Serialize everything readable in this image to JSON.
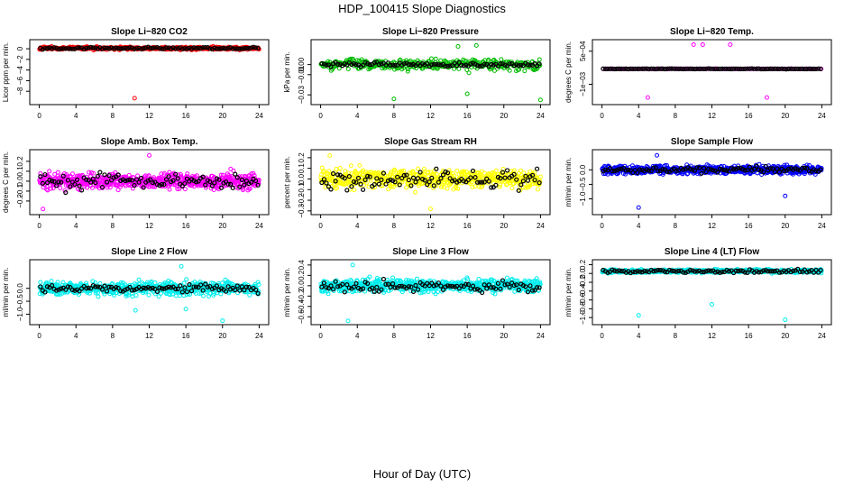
{
  "title": "HDP_100415  Slope Diagnostics",
  "xlabel": "Hour of Day (UTC)",
  "chart_data": [
    {
      "type": "scatter",
      "title": "Slope Li−820 CO2",
      "ylabel": "Licor ppm per min.",
      "color": "#ff0000",
      "ylim": [
        -10,
        1.2
      ],
      "yticks": [
        0,
        -2,
        -4,
        -6,
        -8
      ],
      "ytick_labels": [
        "0",
        "−2",
        "−4",
        "−6",
        "−8"
      ],
      "xlim": [
        0,
        24
      ],
      "xticks": [
        0,
        4,
        8,
        12,
        16,
        20,
        24
      ],
      "xtick_labels": [
        "0",
        "4",
        "8",
        "12",
        "16",
        "20",
        "24"
      ],
      "base": 0.1,
      "spread": 0.25,
      "black_spread": 0.2,
      "n": 480,
      "outliers": [
        [
          10.4,
          -9.3
        ]
      ]
    },
    {
      "type": "scatter",
      "title": "Slope Li−820 Pressure",
      "ylabel": "kPa per min.",
      "color": "#00bb00",
      "ylim": [
        -0.037,
        0.022
      ],
      "yticks": [
        0.0,
        -0.01,
        -0.03
      ],
      "ytick_labels": [
        "0.00",
        "−0.01",
        "−0.03"
      ],
      "xlim": [
        0,
        24
      ],
      "xticks": [
        0,
        4,
        8,
        12,
        16,
        20,
        24
      ],
      "xtick_labels": [
        "0",
        "4",
        "8",
        "12",
        "16",
        "20",
        "24"
      ],
      "base": 0.0,
      "spread": 0.006,
      "black_spread": 0.002,
      "n": 320,
      "outliers": [
        [
          8,
          -0.034
        ],
        [
          16,
          -0.029
        ],
        [
          24,
          -0.035
        ],
        [
          15,
          0.018
        ],
        [
          17,
          0.019
        ]
      ]
    },
    {
      "type": "scatter",
      "title": "Slope Li−820 Temp.",
      "ylabel": "degrees C per min.",
      "color": "#ff00ff",
      "ylim": [
        -0.0018,
        0.0009
      ],
      "yticks": [
        0.0005,
        -0.001
      ],
      "ytick_labels": [
        "5e−04",
        "−1e−03"
      ],
      "xlim": [
        0,
        24
      ],
      "xticks": [
        0,
        4,
        8,
        12,
        16,
        20,
        24
      ],
      "xtick_labels": [
        "0",
        "4",
        "8",
        "12",
        "16",
        "20",
        "24"
      ],
      "base": -0.0003,
      "spread": 1e-05,
      "black_spread": 1e-05,
      "n": 96,
      "outliers": [
        [
          5,
          -0.0016
        ],
        [
          10,
          0.0008
        ],
        [
          11,
          0.0008
        ],
        [
          14,
          0.0008
        ],
        [
          18,
          -0.0016
        ]
      ]
    },
    {
      "type": "scatter",
      "title": "Slope Amb. Box Temp.",
      "ylabel": "degrees C per min.",
      "color": "#ff00ff",
      "ylim": [
        -0.31,
        0.29
      ],
      "yticks": [
        0.2,
        0.1,
        0.0,
        -0.1,
        -0.2
      ],
      "ytick_labels": [
        "0.2",
        "0.1",
        "0.0",
        "−0.1",
        "−0.2"
      ],
      "xlim": [
        0,
        24
      ],
      "xticks": [
        0,
        4,
        8,
        12,
        16,
        20,
        24
      ],
      "xtick_labels": [
        "0",
        "4",
        "8",
        "12",
        "16",
        "20",
        "24"
      ],
      "base": 0.0,
      "spread": 0.08,
      "black_spread": 0.08,
      "n": 620,
      "outliers": [
        [
          0.4,
          -0.28
        ],
        [
          12,
          0.26
        ]
      ]
    },
    {
      "type": "scatter",
      "title": "Slope Gas Stream RH",
      "ylabel": "percent per min.",
      "color": "#ffff00",
      "ylim": [
        -0.31,
        0.25
      ],
      "yticks": [
        0.2,
        0.1,
        0.0,
        -0.1,
        -0.2,
        -0.3
      ],
      "ytick_labels": [
        "0.2",
        "0.1",
        "0.0",
        "−0.1",
        "−0.2",
        "−0.3"
      ],
      "xlim": [
        0,
        24
      ],
      "xticks": [
        0,
        4,
        8,
        12,
        16,
        20,
        24
      ],
      "xtick_labels": [
        "0",
        "4",
        "8",
        "12",
        "16",
        "20",
        "24"
      ],
      "base": 0.0,
      "spread": 0.09,
      "black_spread": 0.09,
      "n": 560,
      "outliers": [
        [
          12,
          -0.28
        ],
        [
          1,
          0.22
        ]
      ]
    },
    {
      "type": "scatter",
      "title": "Slope Sample Flow",
      "ylabel": "ml/min per min.",
      "color": "#0000ff",
      "ylim": [
        -1.45,
        0.6
      ],
      "yticks": [
        0.0,
        -0.5,
        -1.0
      ],
      "ytick_labels": [
        "0.0",
        "−0.5",
        "−1.0"
      ],
      "xlim": [
        0,
        24
      ],
      "xticks": [
        0,
        4,
        8,
        12,
        16,
        20,
        24
      ],
      "xtick_labels": [
        "0",
        "4",
        "8",
        "12",
        "16",
        "20",
        "24"
      ],
      "base": 0.0,
      "spread": 0.15,
      "black_spread": 0.1,
      "n": 650,
      "outliers": [
        [
          4,
          -1.3
        ],
        [
          6,
          0.5
        ],
        [
          20,
          -0.9
        ]
      ]
    },
    {
      "type": "scatter",
      "title": "Slope Line 2 Flow",
      "ylabel": "ml/min per min.",
      "color": "#00eeee",
      "ylim": [
        -1.3,
        1.0
      ],
      "yticks": [
        0.0,
        -0.5,
        -1.0
      ],
      "ytick_labels": [
        "0.0",
        "−0.5",
        "−1.0"
      ],
      "xlim": [
        0,
        24
      ],
      "xticks": [
        0,
        4,
        8,
        12,
        16,
        20,
        24
      ],
      "xtick_labels": [
        "0",
        "4",
        "8",
        "12",
        "16",
        "20",
        "24"
      ],
      "base": 0.0,
      "spread": 0.25,
      "black_spread": 0.15,
      "n": 600,
      "outliers": [
        [
          10.5,
          -0.85
        ],
        [
          20,
          -1.25
        ],
        [
          15.5,
          0.85
        ],
        [
          16,
          -0.8
        ]
      ]
    },
    {
      "type": "scatter",
      "title": "Slope Line 3 Flow",
      "ylabel": "ml/min per min.",
      "color": "#00eeee",
      "ylim": [
        -0.7,
        0.45
      ],
      "yticks": [
        0.4,
        0.2,
        0.0,
        -0.2,
        -0.4,
        -0.6
      ],
      "ytick_labels": [
        "0.4",
        "0.2",
        "0.0",
        "−0.2",
        "−0.4",
        "−0.6"
      ],
      "xlim": [
        0,
        24
      ],
      "xticks": [
        0,
        4,
        8,
        12,
        16,
        20,
        24
      ],
      "xtick_labels": [
        "0",
        "4",
        "8",
        "12",
        "16",
        "20",
        "24"
      ],
      "base": 0.0,
      "spread": 0.12,
      "black_spread": 0.12,
      "n": 650,
      "outliers": [
        [
          3,
          -0.68
        ],
        [
          3.5,
          0.4
        ]
      ]
    },
    {
      "type": "scatter",
      "title": "Slope Line 4 (LT) Flow",
      "ylabel": "ml/min per min.",
      "color": "#00eeee",
      "ylim": [
        -1.1,
        0.25
      ],
      "yticks": [
        0.2,
        0.0,
        -0.2,
        -0.4,
        -0.6,
        -0.8,
        -1.0
      ],
      "ytick_labels": [
        "0.2",
        "0.0",
        "−0.2",
        "−0.4",
        "−0.6",
        "−0.8",
        "−1.0"
      ],
      "xlim": [
        0,
        24
      ],
      "xticks": [
        0,
        4,
        8,
        12,
        16,
        20,
        24
      ],
      "xtick_labels": [
        "0",
        "4",
        "8",
        "12",
        "16",
        "20",
        "24"
      ],
      "base": 0.05,
      "spread": 0.04,
      "black_spread": 0.04,
      "n": 560,
      "outliers": [
        [
          4,
          -0.95
        ],
        [
          12,
          -0.7
        ],
        [
          20,
          -1.05
        ]
      ]
    }
  ]
}
